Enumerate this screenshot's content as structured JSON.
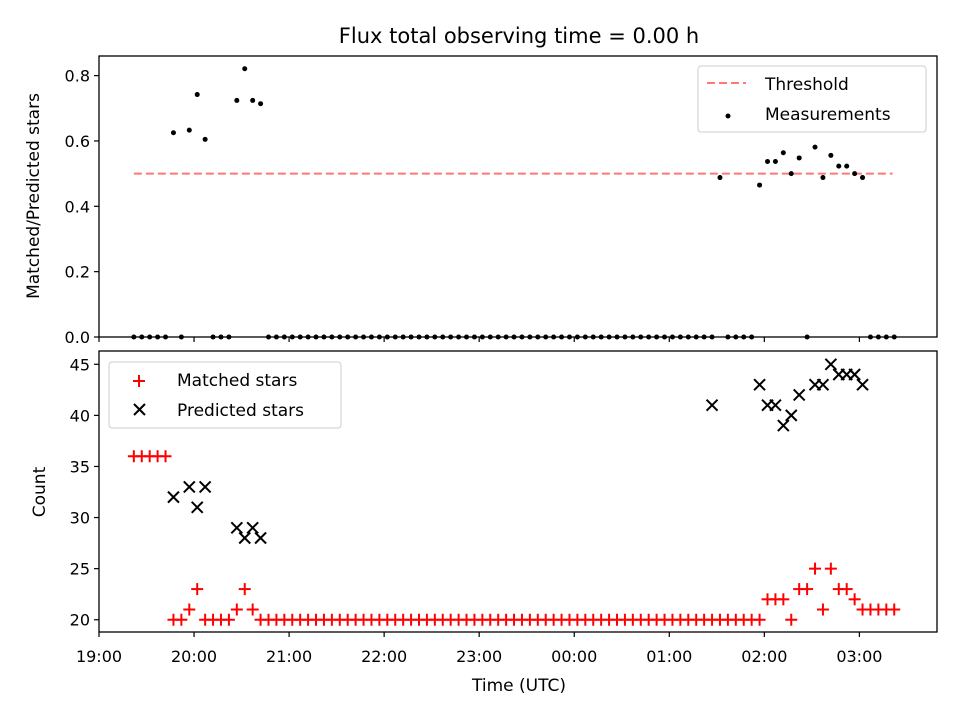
{
  "figure": {
    "title": "Flux total observing time = 0.00 h"
  },
  "chart_data": [
    {
      "type": "scatter",
      "ylabel": "Matched/Predicted stars",
      "ylim": [
        0.0,
        0.86
      ],
      "yticks": [
        0.0,
        0.2,
        0.4,
        0.6,
        0.8
      ],
      "ytick_labels": [
        "0.0",
        "0.2",
        "0.4",
        "0.6",
        "0.8"
      ],
      "xlim": [
        "19:00",
        "03:49"
      ],
      "grid": false,
      "legend_position": "top-right",
      "threshold": {
        "name": "Threshold",
        "value": 0.5,
        "x_start": "19:22",
        "x_end": "03:21",
        "color": "#ff7777"
      },
      "series": [
        {
          "name": "Measurements",
          "color": "#000000",
          "x": [
            "19:22",
            "19:27",
            "19:32",
            "19:37",
            "19:42",
            "19:47",
            "19:52",
            "19:57",
            "20:02",
            "20:07",
            "20:12",
            "20:17",
            "20:22",
            "20:27",
            "20:32",
            "20:37",
            "20:42",
            "20:47",
            "20:52",
            "20:57",
            "21:02",
            "21:07",
            "21:12",
            "21:17",
            "21:22",
            "21:27",
            "21:32",
            "21:37",
            "21:42",
            "21:47",
            "21:52",
            "21:57",
            "22:02",
            "22:07",
            "22:12",
            "22:17",
            "22:22",
            "22:27",
            "22:32",
            "22:37",
            "22:42",
            "22:47",
            "22:52",
            "22:57",
            "23:02",
            "23:07",
            "23:12",
            "23:17",
            "23:22",
            "23:27",
            "23:32",
            "23:37",
            "23:42",
            "23:47",
            "23:52",
            "23:57",
            "00:02",
            "00:07",
            "00:12",
            "00:17",
            "00:22",
            "00:27",
            "00:32",
            "00:37",
            "00:42",
            "00:47",
            "00:52",
            "00:57",
            "01:02",
            "01:07",
            "01:12",
            "01:17",
            "01:22",
            "01:27",
            "01:32",
            "01:37",
            "01:42",
            "01:47",
            "01:52",
            "01:57",
            "02:02",
            "02:07",
            "02:12",
            "02:17",
            "02:22",
            "02:27",
            "02:32",
            "02:37",
            "02:42",
            "02:47",
            "02:52",
            "02:57",
            "03:02",
            "03:07",
            "03:12",
            "03:17",
            "03:22"
          ],
          "y": [
            0,
            0,
            0,
            0,
            0,
            0.625,
            0,
            0.633,
            0.742,
            0.605,
            0,
            0,
            0,
            0.724,
            0.821,
            0.724,
            0.714,
            0,
            0,
            0,
            0,
            0,
            0,
            0,
            0,
            0,
            0,
            0,
            0,
            0,
            0,
            0,
            0,
            0,
            0,
            0,
            0,
            0,
            0,
            0,
            0,
            0,
            0,
            0,
            0,
            0,
            0,
            0,
            0,
            0,
            0,
            0,
            0,
            0,
            0,
            0,
            0,
            0,
            0,
            0,
            0,
            0,
            0,
            0,
            0,
            0,
            0,
            0,
            0,
            0,
            0,
            0,
            0,
            0,
            0.488,
            0,
            0,
            0,
            0,
            0.465,
            0.537,
            0.537,
            0.564,
            0.5,
            0.548,
            0,
            0.581,
            0.488,
            0.556,
            0.523,
            0.523,
            0.5,
            0.488,
            0,
            0,
            0,
            0
          ]
        }
      ]
    },
    {
      "type": "scatter",
      "xlabel": "Time (UTC)",
      "ylabel": "Count",
      "ylim": [
        18.8,
        46.3
      ],
      "yticks": [
        20,
        25,
        30,
        35,
        40,
        45
      ],
      "ytick_labels": [
        "20",
        "25",
        "30",
        "35",
        "40",
        "45"
      ],
      "xlim": [
        "19:00",
        "03:49"
      ],
      "xticks": [
        "19:00",
        "20:00",
        "21:00",
        "22:00",
        "23:00",
        "00:00",
        "01:00",
        "02:00",
        "03:00"
      ],
      "xtick_labels": [
        "19:00",
        "20:00",
        "21:00",
        "22:00",
        "23:00",
        "00:00",
        "01:00",
        "02:00",
        "03:00"
      ],
      "grid": false,
      "legend_position": "top-left",
      "series": [
        {
          "name": "Matched stars",
          "marker": "plus",
          "color": "#ff0000",
          "x": [
            "19:22",
            "19:27",
            "19:32",
            "19:37",
            "19:42",
            "19:47",
            "19:52",
            "19:57",
            "20:02",
            "20:07",
            "20:12",
            "20:17",
            "20:22",
            "20:27",
            "20:32",
            "20:37",
            "20:42",
            "20:47",
            "20:52",
            "20:57",
            "21:02",
            "21:07",
            "21:12",
            "21:17",
            "21:22",
            "21:27",
            "21:32",
            "21:37",
            "21:42",
            "21:47",
            "21:52",
            "21:57",
            "22:02",
            "22:07",
            "22:12",
            "22:17",
            "22:22",
            "22:27",
            "22:32",
            "22:37",
            "22:42",
            "22:47",
            "22:52",
            "22:57",
            "23:02",
            "23:07",
            "23:12",
            "23:17",
            "23:22",
            "23:27",
            "23:32",
            "23:37",
            "23:42",
            "23:47",
            "23:52",
            "23:57",
            "00:02",
            "00:07",
            "00:12",
            "00:17",
            "00:22",
            "00:27",
            "00:32",
            "00:37",
            "00:42",
            "00:47",
            "00:52",
            "00:57",
            "01:02",
            "01:07",
            "01:12",
            "01:17",
            "01:22",
            "01:27",
            "01:32",
            "01:37",
            "01:42",
            "01:47",
            "01:52",
            "01:57",
            "02:02",
            "02:07",
            "02:12",
            "02:17",
            "02:22",
            "02:27",
            "02:32",
            "02:37",
            "02:42",
            "02:47",
            "02:52",
            "02:57",
            "03:02",
            "03:07",
            "03:12",
            "03:17",
            "03:22"
          ],
          "y": [
            36,
            36,
            36,
            36,
            36,
            20,
            20,
            21,
            23,
            20,
            20,
            20,
            20,
            21,
            23,
            21,
            20,
            20,
            20,
            20,
            20,
            20,
            20,
            20,
            20,
            20,
            20,
            20,
            20,
            20,
            20,
            20,
            20,
            20,
            20,
            20,
            20,
            20,
            20,
            20,
            20,
            20,
            20,
            20,
            20,
            20,
            20,
            20,
            20,
            20,
            20,
            20,
            20,
            20,
            20,
            20,
            20,
            20,
            20,
            20,
            20,
            20,
            20,
            20,
            20,
            20,
            20,
            20,
            20,
            20,
            20,
            20,
            20,
            20,
            20,
            20,
            20,
            20,
            20,
            20,
            22,
            22,
            22,
            20,
            23,
            23,
            25,
            21,
            25,
            23,
            23,
            22,
            21,
            21,
            21,
            21,
            21
          ]
        },
        {
          "name": "Predicted stars",
          "marker": "x",
          "color": "#000000",
          "x": [
            "19:47",
            "19:57",
            "20:02",
            "20:07",
            "20:27",
            "20:32",
            "20:37",
            "20:42",
            "01:27",
            "01:57",
            "02:02",
            "02:07",
            "02:12",
            "02:17",
            "02:22",
            "02:32",
            "02:37",
            "02:42",
            "02:47",
            "02:52",
            "02:57",
            "03:02"
          ],
          "y": [
            32,
            33,
            31,
            33,
            29,
            28,
            29,
            28,
            41,
            43,
            41,
            41,
            39,
            40,
            42,
            43,
            43,
            45,
            44,
            44,
            44,
            43
          ]
        }
      ]
    }
  ]
}
